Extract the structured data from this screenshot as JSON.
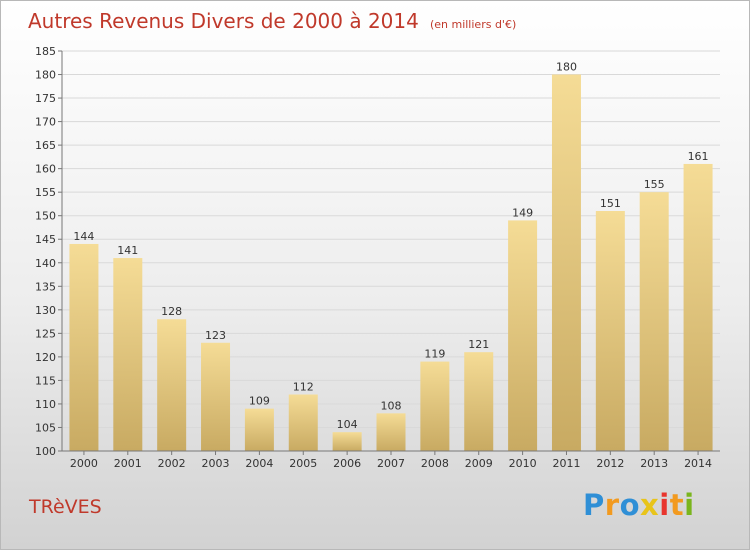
{
  "title": "Autres Revenus Divers de 2000 à 2014",
  "unit": "(en milliers d'€)",
  "place": "TRèVES",
  "brand": {
    "letters": [
      {
        "char": "P",
        "color": "#2f8fd6"
      },
      {
        "char": "r",
        "color": "#f29a1f"
      },
      {
        "char": "o",
        "color": "#2f8fd6"
      },
      {
        "char": "x",
        "color": "#e8c41a"
      },
      {
        "char": "i",
        "color": "#e8352e"
      },
      {
        "char": "t",
        "color": "#f29a1f"
      },
      {
        "char": "i",
        "color": "#7ab51d"
      }
    ]
  },
  "chart_data": {
    "type": "bar",
    "categories": [
      "2000",
      "2001",
      "2002",
      "2003",
      "2004",
      "2005",
      "2006",
      "2007",
      "2008",
      "2009",
      "2010",
      "2011",
      "2012",
      "2013",
      "2014"
    ],
    "values": [
      144,
      141,
      128,
      123,
      109,
      112,
      104,
      108,
      119,
      121,
      149,
      180,
      151,
      155,
      161
    ],
    "ylim": [
      100,
      185
    ],
    "yticks": [
      100,
      105,
      110,
      115,
      120,
      125,
      130,
      135,
      140,
      145,
      150,
      155,
      160,
      165,
      170,
      175,
      180,
      185
    ],
    "grid": true,
    "data_labels": true,
    "bar_color_light": "#f5dc96",
    "bar_color_dark": "#c8aa62",
    "grid_color": "#d9d9d9",
    "title_color": "#c0392b"
  }
}
